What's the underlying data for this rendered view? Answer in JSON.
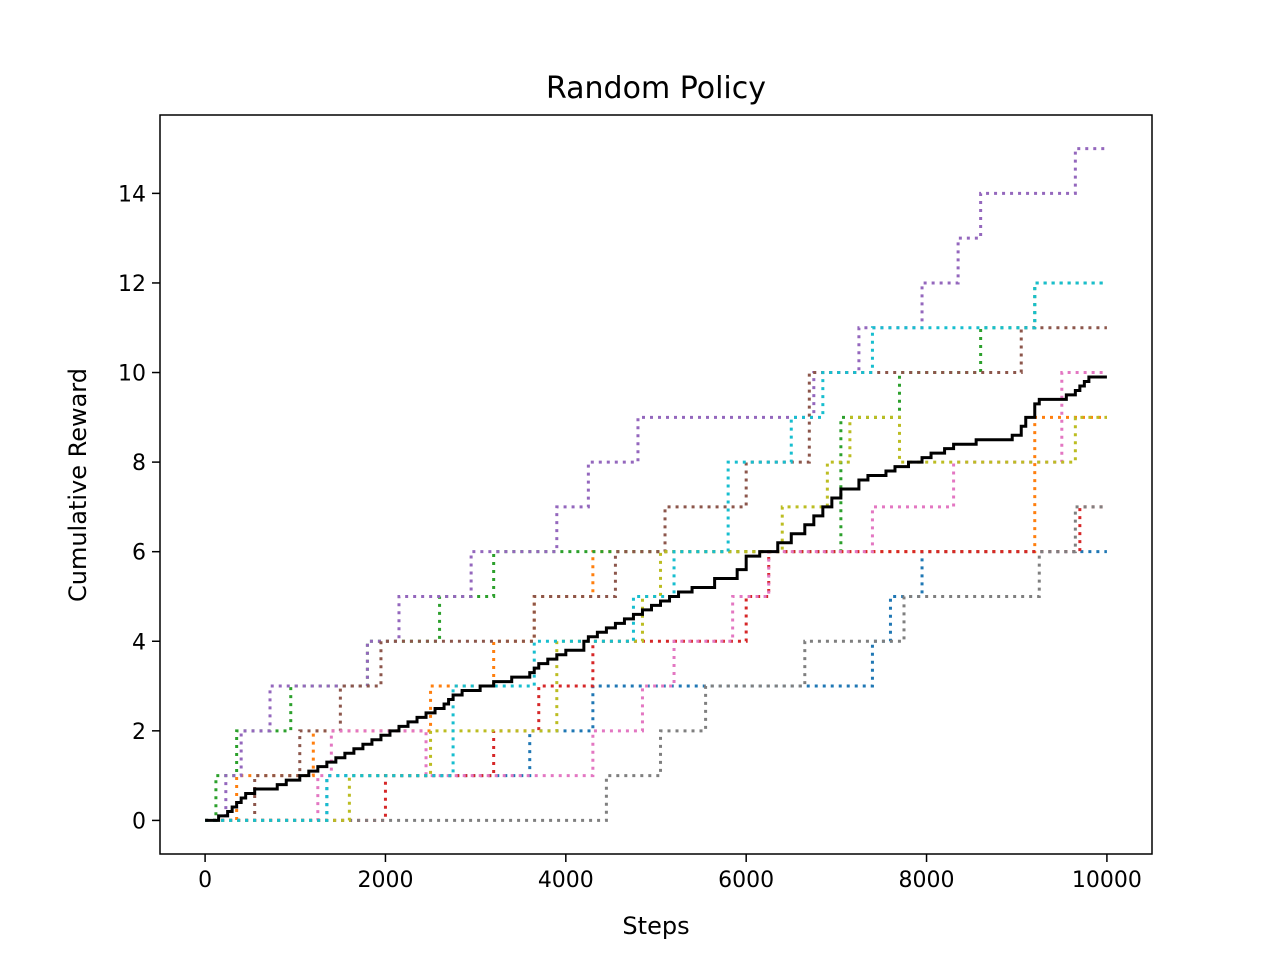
{
  "chart_data": {
    "type": "line",
    "title": "Random Policy",
    "xlabel": "Steps",
    "ylabel": "Cumulative Reward",
    "xlim": [
      -500,
      10500
    ],
    "ylim": [
      -0.75,
      15.75
    ],
    "xticks": [
      0,
      2000,
      4000,
      6000,
      8000,
      10000
    ],
    "yticks": [
      0,
      2,
      4,
      6,
      8,
      10,
      12,
      14
    ],
    "grid": false,
    "legend": "none",
    "series": [
      {
        "color": "#1f77b4",
        "style": "dotted",
        "x": [
          0,
          1350,
          3600,
          4300,
          7400,
          7600,
          7950,
          10000
        ],
        "y": [
          0,
          1,
          2,
          3,
          4,
          5,
          6,
          6
        ]
      },
      {
        "color": "#ff7f0e",
        "style": "dotted",
        "x": [
          0,
          350,
          1200,
          2500,
          3200,
          3650,
          4300,
          9200,
          10000
        ],
        "y": [
          0,
          1,
          2,
          3,
          4,
          5,
          6,
          9,
          9
        ]
      },
      {
        "color": "#2ca02c",
        "style": "dotted",
        "x": [
          0,
          120,
          350,
          950,
          1800,
          2600,
          3200,
          7050,
          7700,
          8600,
          9200,
          10000
        ],
        "y": [
          0,
          1,
          2,
          3,
          4,
          5,
          6,
          9,
          10,
          11,
          12,
          12
        ]
      },
      {
        "color": "#d62728",
        "style": "dotted",
        "x": [
          0,
          2000,
          3200,
          3700,
          4300,
          6000,
          6250,
          9200,
          9700,
          9800,
          10000
        ],
        "y": [
          0,
          1,
          2,
          3,
          4,
          5,
          6,
          6,
          7,
          7,
          7
        ]
      },
      {
        "color": "#9467bd",
        "style": "dotted",
        "x": [
          0,
          230,
          400,
          720,
          1800,
          2150,
          2950,
          3900,
          4250,
          4800,
          6750,
          7250,
          7950,
          8350,
          8600,
          9650,
          10000
        ],
        "y": [
          0,
          1,
          2,
          3,
          4,
          5,
          6,
          7,
          8,
          9,
          10,
          11,
          12,
          13,
          14,
          15,
          15
        ]
      },
      {
        "color": "#8c564b",
        "style": "dotted",
        "x": [
          0,
          550,
          1050,
          1500,
          1950,
          3650,
          4550,
          5100,
          6000,
          6700,
          9050,
          10000
        ],
        "y": [
          0,
          1,
          2,
          3,
          4,
          5,
          6,
          7,
          8,
          10,
          11,
          11
        ]
      },
      {
        "color": "#e377c2",
        "style": "dotted",
        "x": [
          0,
          1250,
          1400,
          2450,
          4300,
          4850,
          5200,
          5850,
          6250,
          7400,
          8300,
          9500,
          10000
        ],
        "y": [
          0,
          1,
          2,
          1,
          2,
          3,
          4,
          5,
          6,
          7,
          8,
          10,
          10
        ]
      },
      {
        "color": "#7f7f7f",
        "style": "dotted",
        "x": [
          0,
          4450,
          5050,
          5550,
          6650,
          7750,
          9250,
          9650,
          10000
        ],
        "y": [
          0,
          1,
          2,
          3,
          4,
          5,
          6,
          7,
          7
        ]
      },
      {
        "color": "#bcbd22",
        "style": "dotted",
        "x": [
          0,
          1600,
          2500,
          3900,
          4850,
          5050,
          6400,
          6900,
          7150,
          7700,
          9650,
          10000
        ],
        "y": [
          0,
          1,
          2,
          4,
          5,
          6,
          7,
          8,
          9,
          8,
          9,
          9
        ]
      },
      {
        "color": "#17becf",
        "style": "dotted",
        "x": [
          0,
          1350,
          2750,
          3650,
          4750,
          5200,
          5800,
          6500,
          6850,
          7400,
          9200,
          10000
        ],
        "y": [
          0,
          1,
          3,
          4,
          5,
          6,
          8,
          9,
          10,
          11,
          12,
          12
        ]
      },
      {
        "color": "#000000",
        "style": "solid",
        "x": [
          0,
          150,
          250,
          300,
          350,
          400,
          450,
          550,
          600,
          800,
          900,
          1050,
          1150,
          1250,
          1350,
          1450,
          1550,
          1650,
          1750,
          1850,
          1950,
          2050,
          2150,
          2250,
          2350,
          2450,
          2550,
          2650,
          2700,
          2750,
          2850,
          3050,
          3200,
          3400,
          3600,
          3650,
          3700,
          3800,
          3900,
          4000,
          4200,
          4250,
          4350,
          4450,
          4550,
          4650,
          4750,
          4850,
          4950,
          5050,
          5150,
          5250,
          5400,
          5650,
          5900,
          6000,
          6150,
          6350,
          6500,
          6650,
          6750,
          6850,
          6950,
          7050,
          7250,
          7350,
          7550,
          7650,
          7800,
          7950,
          8050,
          8200,
          8300,
          8550,
          8950,
          9050,
          9100,
          9200,
          9250,
          9400,
          9550,
          9650,
          9700,
          9750,
          9800,
          10000
        ],
        "y": [
          0,
          0.1,
          0.2,
          0.3,
          0.4,
          0.5,
          0.6,
          0.7,
          0.7,
          0.8,
          0.9,
          1.0,
          1.1,
          1.2,
          1.3,
          1.4,
          1.5,
          1.6,
          1.7,
          1.8,
          1.9,
          2.0,
          2.1,
          2.2,
          2.3,
          2.4,
          2.5,
          2.6,
          2.7,
          2.8,
          2.9,
          3.0,
          3.1,
          3.2,
          3.3,
          3.4,
          3.5,
          3.6,
          3.7,
          3.8,
          4.0,
          4.1,
          4.2,
          4.3,
          4.4,
          4.5,
          4.6,
          4.7,
          4.8,
          4.9,
          5.0,
          5.1,
          5.2,
          5.4,
          5.6,
          5.9,
          6.0,
          6.2,
          6.4,
          6.6,
          6.8,
          7.0,
          7.2,
          7.4,
          7.6,
          7.7,
          7.8,
          7.9,
          8.0,
          8.1,
          8.2,
          8.3,
          8.4,
          8.5,
          8.6,
          8.8,
          9.0,
          9.3,
          9.4,
          9.4,
          9.5,
          9.6,
          9.7,
          9.8,
          9.9,
          9.9
        ]
      }
    ]
  }
}
